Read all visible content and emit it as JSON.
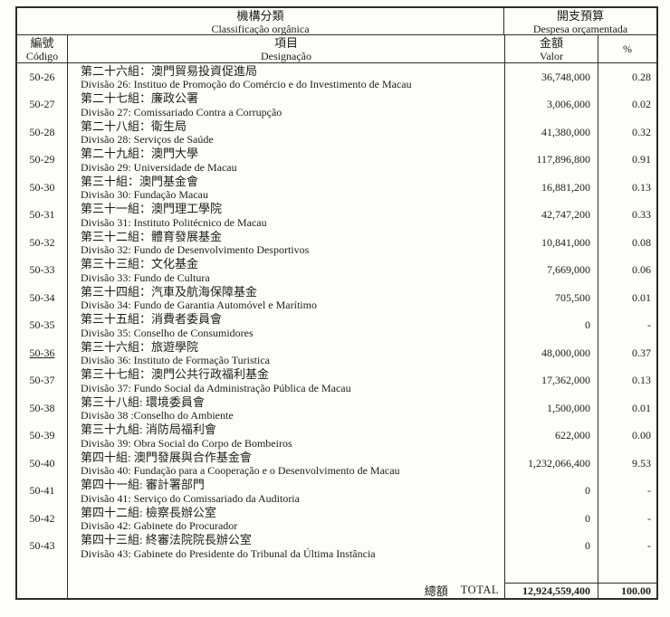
{
  "header": {
    "org_zh": "機構分類",
    "org_pt": "Classificação orgânica",
    "budget_zh": "開支預算",
    "budget_pt": "Despesa orçamentada",
    "code_zh": "編號",
    "code_pt": "Código",
    "item_zh": "項目",
    "item_pt": "Designação",
    "amount_zh": "金額",
    "amount_pt": "Valor",
    "percent_label": "%"
  },
  "rows": [
    {
      "code": "50-26",
      "zh": "第二十六組：澳門貿易投資促進局",
      "pt": "Divisão 26: Instituo de Promoção do Comércio e do Investimento de Macau",
      "amount": "36,748,000",
      "percent": "0.28"
    },
    {
      "code": "50-27",
      "zh": "第二十七組：廉政公署",
      "pt": "Divisão 27: Comissariado Contra a Corrupção",
      "amount": "3,006,000",
      "percent": "0.02"
    },
    {
      "code": "50-28",
      "zh": "第二十八組：衛生局",
      "pt": "Divisão 28: Serviços de Saúde",
      "amount": "41,380,000",
      "percent": "0.32"
    },
    {
      "code": "50-29",
      "zh": "第二十九組：澳門大學",
      "pt": "Divisão 29: Universidade de Macau",
      "amount": "117,896,800",
      "percent": "0.91"
    },
    {
      "code": "50-30",
      "zh": "第三十組：澳門基金會",
      "pt": "Divisão 30: Fundação Macau",
      "amount": "16,881,200",
      "percent": "0.13"
    },
    {
      "code": "50-31",
      "zh": "第三十一組：澳門理工學院",
      "pt": "Divisão 31: Instituto Politécnico de Macau",
      "amount": "42,747,200",
      "percent": "0.33"
    },
    {
      "code": "50-32",
      "zh": "第三十二組：體育發展基金",
      "pt": "Divisão 32: Fundo de Desenvolvimento Desportivos",
      "amount": "10,841,000",
      "percent": "0.08"
    },
    {
      "code": "50-33",
      "zh": "第三十三組：文化基金",
      "pt": "Divisão 33: Fundo de Cultura",
      "amount": "7,669,000",
      "percent": "0.06"
    },
    {
      "code": "50-34",
      "zh": "第三十四組：汽車及航海保障基金",
      "pt": "Divisão 34: Fundo de Garantia Automóvel e Marítimo",
      "amount": "705,500",
      "percent": "0.01"
    },
    {
      "code": "50-35",
      "zh": "第三十五組：消費者委員會",
      "pt": "Divisão 35: Conselho de Consumidores",
      "amount": "0",
      "percent": "-"
    },
    {
      "code": "50-36",
      "zh": "第三十六組：旅遊學院",
      "pt": "Divisão 36: Instituto de Formação Turistica",
      "amount": "48,000,000",
      "percent": "0.37",
      "code_underlined": true
    },
    {
      "code": "50-37",
      "zh": "第三十七組：澳門公共行政福利基金",
      "pt": "Divisão 37: Fundo Social da Administração Pública de Macau",
      "amount": "17,362,000",
      "percent": "0.13"
    },
    {
      "code": "50-38",
      "zh": "第三十八組: 環境委員會",
      "pt": "Divisão 38 :Conselho do Ambiente",
      "amount": "1,500,000",
      "percent": "0.01"
    },
    {
      "code": "50-39",
      "zh": "第三十九組: 消防局福利會",
      "pt": "Divisão 39: Obra Social do Corpo de Bombeiros",
      "amount": "622,000",
      "percent": "0.00"
    },
    {
      "code": "50-40",
      "zh": "第四十組: 澳門發展與合作基金會",
      "pt": "Divisão 40: Fundação para a Cooperação e o Desenvolvimento de Macau",
      "amount": "1,232,066,400",
      "percent": "9.53"
    },
    {
      "code": "50-41",
      "zh": "第四十一組: 審計署部門",
      "pt": "Divisão 41: Serviço do Comissariado da Auditoria",
      "amount": "0",
      "percent": "-"
    },
    {
      "code": "50-42",
      "zh": "第四十二組: 檢察長辦公室",
      "pt": "Divisão 42: Gabinete do Procurador",
      "amount": "0",
      "percent": "-"
    },
    {
      "code": "50-43",
      "zh": "第四十三組: 終審法院院長辦公室",
      "pt": "Divisão 43: Gabinete do Presidente do Tribunal da Última Instância",
      "amount": "0",
      "percent": "-"
    }
  ],
  "total": {
    "label_zh": "總額",
    "label_en": "TOTAL",
    "amount": "12,924,559,400",
    "percent": "100.00"
  }
}
